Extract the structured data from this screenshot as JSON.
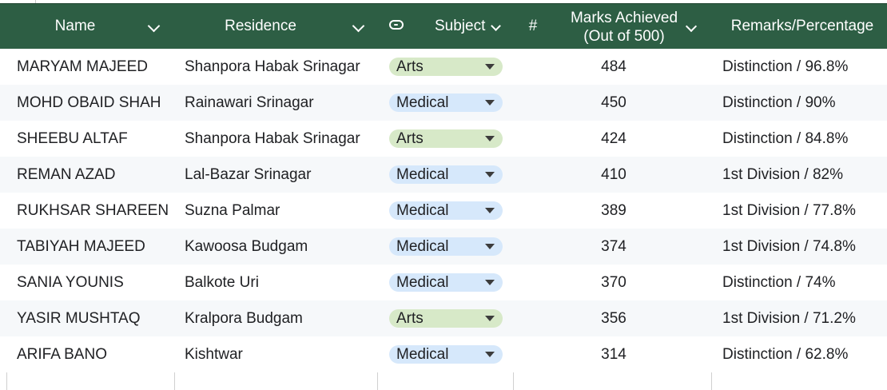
{
  "header": {
    "name": "Name",
    "residence": "Residence",
    "subject": "Subject",
    "hash": "#",
    "marks_line1": "Marks Achieved",
    "marks_line2": "(Out of 500)",
    "remarks": "Remarks/Percentage"
  },
  "colors": {
    "header_bg": "#2d5e44",
    "arts_pill": "#d7e9c8",
    "medical_pill": "#d6e8fb"
  },
  "icons": {
    "subject_header": "chip-icon",
    "column_menu": "chevron-down-icon",
    "pill_dropdown": "triangle-down-icon"
  },
  "rows": [
    {
      "name": "MARYAM MAJEED",
      "residence": "Shanpora Habak Srinagar",
      "subject": "Arts",
      "marks": "484",
      "remarks": "Distinction / 96.8%"
    },
    {
      "name": "MOHD OBAID SHAH",
      "residence": "Rainawari Srinagar",
      "subject": "Medical",
      "marks": "450",
      "remarks": "Distinction / 90%"
    },
    {
      "name": "SHEEBU ALTAF",
      "residence": "Shanpora Habak Srinagar",
      "subject": "Arts",
      "marks": "424",
      "remarks": "Distinction / 84.8%"
    },
    {
      "name": "REMAN AZAD",
      "residence": "Lal-Bazar Srinagar",
      "subject": "Medical",
      "marks": "410",
      "remarks": "1st Division / 82%"
    },
    {
      "name": "RUKHSAR SHAREEN",
      "residence": "Suzna Palmar",
      "subject": "Medical",
      "marks": "389",
      "remarks": "1st Division / 77.8%"
    },
    {
      "name": "TABIYAH MAJEED",
      "residence": "Kawoosa Budgam",
      "subject": "Medical",
      "marks": "374",
      "remarks": "1st Division / 74.8%"
    },
    {
      "name": "SANIA YOUNIS",
      "residence": "Balkote Uri",
      "subject": "Medical",
      "marks": "370",
      "remarks": "Distinction / 74%"
    },
    {
      "name": "YASIR MUSHTAQ",
      "residence": "Kralpora Budgam",
      "subject": "Arts",
      "marks": "356",
      "remarks": "1st Division / 71.2%"
    },
    {
      "name": "ARIFA BANO",
      "residence": "Kishtwar",
      "subject": "Medical",
      "marks": "314",
      "remarks": "Distinction / 62.8%"
    }
  ]
}
